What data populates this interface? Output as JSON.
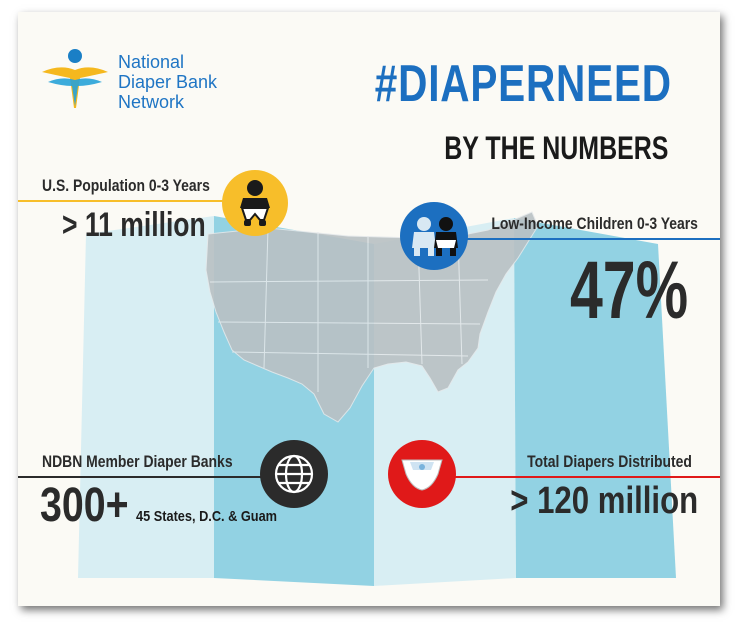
{
  "logo": {
    "lines": [
      "National",
      "Diaper Bank",
      "Network"
    ],
    "icon": "person-figure-logo"
  },
  "header": {
    "hashtag": "#DIAPERNEED",
    "subtitle": "BY THE NUMBERS"
  },
  "stats": {
    "population": {
      "label": "U.S. Population 0-3 Years",
      "value": "> 11 million",
      "icon": "baby-icon"
    },
    "low_income": {
      "label": "Low-Income Children 0-3 Years",
      "value": "47%",
      "icon": "two-babies-icon"
    },
    "banks": {
      "label": "NDBN Member Diaper Banks",
      "value": "300+",
      "detail": "45 States, D.C. & Guam",
      "icon": "globe-icon"
    },
    "diapers": {
      "label": "Total Diapers Distributed",
      "value": "> 120 million",
      "icon": "diaper-icon"
    }
  },
  "colors": {
    "blue": "#1c6fc0",
    "yellow": "#f7be2a",
    "dark": "#2b2b2b",
    "red": "#e01919",
    "map_panel_light": "#cfe9f0",
    "map_panel_dark": "#8fd0e2"
  }
}
